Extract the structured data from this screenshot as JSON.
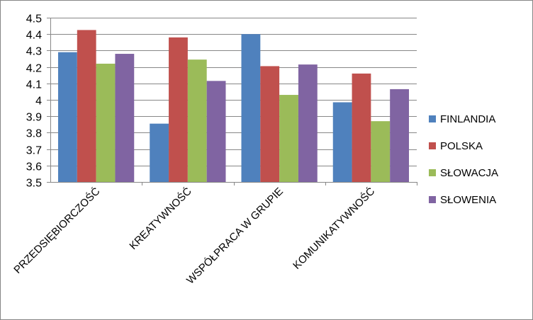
{
  "chart_data": {
    "type": "bar",
    "categories": [
      "PRZEDSIĘBIORCZOŚĆ",
      "KREATYWNOŚĆ",
      "WSPÓŁPRACA W GRUPIE",
      "KOMUNIKATYWNOŚĆ"
    ],
    "series": [
      {
        "name": "FINLANDIA",
        "color": "#4F81BD",
        "values": [
          4.29,
          3.855,
          4.4,
          3.985
        ]
      },
      {
        "name": "POLSKA",
        "color": "#C0504D",
        "values": [
          4.425,
          4.38,
          4.205,
          4.16
        ]
      },
      {
        "name": "SŁOWACJA",
        "color": "#9BBB59",
        "values": [
          4.22,
          4.245,
          4.03,
          3.87
        ]
      },
      {
        "name": "SŁOWENIA",
        "color": "#8064A2",
        "values": [
          4.28,
          4.115,
          4.215,
          4.065
        ]
      }
    ],
    "ylim": [
      3.5,
      4.5
    ],
    "yticks": [
      "3.5",
      "3.6",
      "3.7",
      "3.8",
      "3.9",
      "4",
      "4.1",
      "4.2",
      "4.3",
      "4.4",
      "4.5"
    ],
    "grid": true,
    "legend_position": "right",
    "title": "",
    "xlabel": "",
    "ylabel": ""
  }
}
